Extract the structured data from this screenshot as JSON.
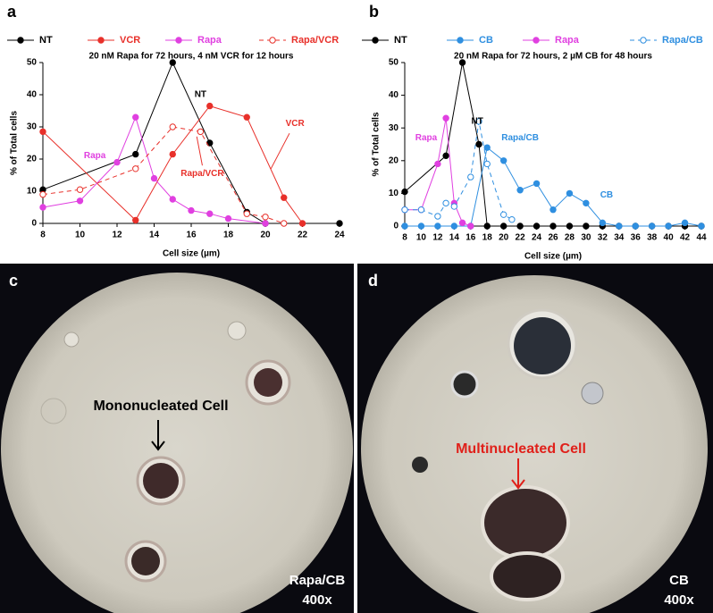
{
  "chart_data": [
    {
      "type": "line",
      "panel_label": "a",
      "title": "20 nM Rapa for 72 hours, 4 nM VCR for 12 hours",
      "x_label": "Cell size (µm)",
      "y_label": "% of Total cells",
      "xlim": [
        8,
        24
      ],
      "xticks": [
        8,
        10,
        12,
        14,
        16,
        18,
        20,
        22,
        24
      ],
      "ylim": [
        0,
        50
      ],
      "yticks": [
        0,
        10,
        20,
        30,
        40,
        50
      ],
      "series": [
        {
          "name": "NT",
          "color": "#000000",
          "dashed": false,
          "marker": "filled",
          "x": [
            8,
            13,
            15,
            17,
            19,
            20,
            24
          ],
          "values": [
            10.5,
            21.5,
            50,
            25,
            3.5,
            0,
            0
          ]
        },
        {
          "name": "VCR",
          "color": "#e8302a",
          "dashed": false,
          "marker": "filled",
          "x": [
            8,
            13,
            15,
            17,
            19,
            21,
            22
          ],
          "values": [
            28.5,
            1,
            21.5,
            36.5,
            33,
            8,
            0
          ]
        },
        {
          "name": "Rapa",
          "color": "#e040e0",
          "dashed": false,
          "marker": "filled",
          "x": [
            8,
            10,
            12,
            13,
            14,
            15,
            16,
            17,
            18,
            20
          ],
          "values": [
            5,
            7,
            19,
            33,
            14,
            7.5,
            4,
            3,
            1.5,
            0
          ]
        },
        {
          "name": "Rapa/VCR",
          "color": "#e8302a",
          "dashed": true,
          "marker": "open",
          "x": [
            8,
            10,
            13,
            15,
            16.5,
            19,
            20,
            21
          ],
          "values": [
            9,
            10.5,
            17,
            30,
            28.5,
            3,
            2,
            0
          ]
        }
      ],
      "annotations": [
        {
          "text": "NT",
          "color": "#000000"
        },
        {
          "text": "VCR",
          "color": "#e8302a"
        },
        {
          "text": "Rapa",
          "color": "#e040e0"
        },
        {
          "text": "Rapa/VCR",
          "color": "#e8302a"
        }
      ]
    },
    {
      "type": "line",
      "panel_label": "b",
      "title": "20 nM Rapa for 72 hours, 2 µM CB for 48 hours",
      "x_label": "Cell size (µm)",
      "y_label": "% of Total cells",
      "xlim": [
        8,
        44
      ],
      "xticks": [
        8,
        10,
        12,
        14,
        16,
        18,
        20,
        22,
        24,
        26,
        28,
        30,
        32,
        34,
        36,
        38,
        40,
        42,
        44
      ],
      "ylim": [
        0,
        50
      ],
      "yticks": [
        0,
        10,
        20,
        30,
        40,
        50
      ],
      "series": [
        {
          "name": "NT",
          "color": "#000000",
          "dashed": false,
          "marker": "filled",
          "x": [
            8,
            13,
            15,
            17,
            18,
            20,
            22,
            24,
            26,
            28,
            30,
            32,
            34,
            36,
            38,
            40,
            42,
            44
          ],
          "values": [
            10.5,
            21.5,
            50,
            25,
            0,
            0,
            0,
            0,
            0,
            0,
            0,
            0,
            0,
            0,
            0,
            0,
            0,
            0
          ]
        },
        {
          "name": "CB",
          "color": "#2f8fe0",
          "dashed": false,
          "marker": "filled",
          "x": [
            8,
            10,
            12,
            14,
            16,
            18,
            20,
            22,
            24,
            26,
            28,
            30,
            32,
            34,
            36,
            38,
            40,
            42,
            44
          ],
          "values": [
            0,
            0,
            0,
            0,
            0,
            24,
            20,
            11,
            13,
            5,
            10,
            7,
            1,
            0,
            0,
            0,
            0,
            1,
            0
          ]
        },
        {
          "name": "Rapa",
          "color": "#e040e0",
          "dashed": false,
          "marker": "filled",
          "x": [
            8,
            10,
            12,
            13,
            14,
            15,
            16
          ],
          "values": [
            5,
            5,
            19,
            33,
            7,
            1,
            0
          ]
        },
        {
          "name": "Rapa/CB",
          "color": "#2f8fe0",
          "dashed": true,
          "marker": "open",
          "x": [
            8,
            10,
            12,
            13,
            14,
            16,
            17,
            18,
            20,
            21
          ],
          "values": [
            5,
            5,
            3,
            7,
            6,
            15,
            32,
            19,
            3.5,
            2
          ]
        }
      ],
      "annotations": [
        {
          "text": "NT",
          "color": "#000000"
        },
        {
          "text": "Rapa",
          "color": "#e040e0"
        },
        {
          "text": "Rapa/CB",
          "color": "#2f8fe0"
        },
        {
          "text": "CB",
          "color": "#2f8fe0"
        }
      ]
    }
  ],
  "images": [
    {
      "panel_label": "c",
      "label": "Mononucleated Cell",
      "label_color": "#000000",
      "caption": [
        "Rapa/CB",
        "400x"
      ]
    },
    {
      "panel_label": "d",
      "label": "Multinucleated Cell",
      "label_color": "#e0201a",
      "caption": [
        "CB",
        "400x"
      ]
    }
  ]
}
